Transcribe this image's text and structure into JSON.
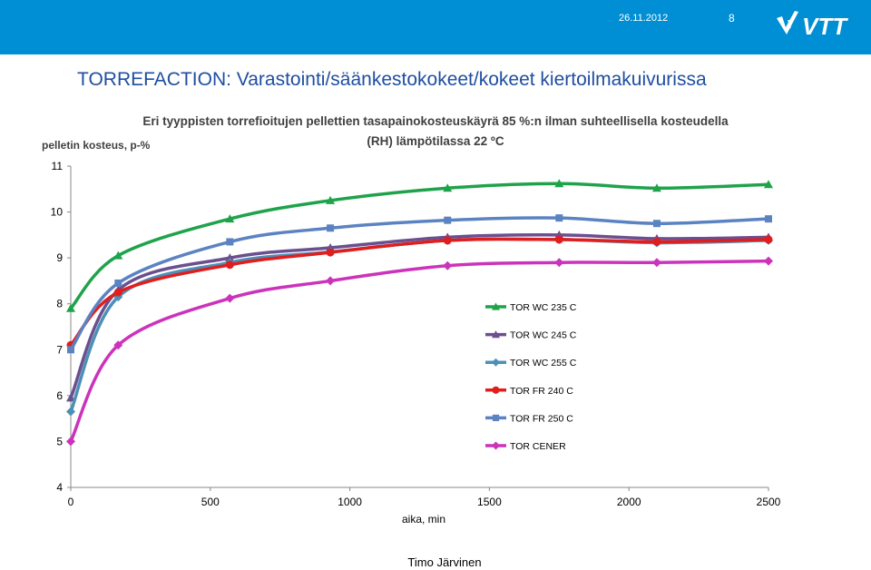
{
  "header": {
    "date": "26.11.2012",
    "page_number": "8",
    "logo": "vtt-logo"
  },
  "slide_title": "TORREFACTION: Varastointi/säänkestokokeet/kokeet kiertoilmakuivurissa",
  "footer_author": "Timo Järvinen",
  "chart_data": {
    "type": "line",
    "title": "Eri tyyppisten torrefioitujen pellettien tasapainokosteuskäyrä 85 %:n ilman suhteellisella kosteudella (RH) lämpötilassa 22 ºC",
    "xlabel": "aika, min",
    "ylabel": "pelletin kosteus, p-%",
    "xlim": [
      0,
      2500
    ],
    "ylim": [
      4,
      11
    ],
    "xticks": [
      0,
      500,
      1000,
      1500,
      2000,
      2500
    ],
    "yticks": [
      4,
      5,
      6,
      7,
      8,
      9,
      10,
      11
    ],
    "grid": false,
    "legend_position": "right",
    "x": [
      0,
      170,
      570,
      930,
      1350,
      1750,
      2100,
      2500
    ],
    "series": [
      {
        "name": "TOR WC 235 C",
        "color": "#1fa34a",
        "marker": "triangle",
        "values": [
          7.9,
          9.05,
          9.85,
          10.25,
          10.52,
          10.62,
          10.52,
          10.6
        ]
      },
      {
        "name": "TOR WC 245 C",
        "color": "#6b4f8e",
        "marker": "triangle",
        "values": [
          5.95,
          8.3,
          9.0,
          9.22,
          9.45,
          9.5,
          9.42,
          9.45
        ]
      },
      {
        "name": "TOR WC 255 C",
        "color": "#4a90b8",
        "marker": "diamond",
        "values": [
          5.65,
          8.15,
          8.9,
          9.13,
          9.38,
          9.4,
          9.33,
          9.38
        ]
      },
      {
        "name": "TOR FR 240 C",
        "color": "#e01e1e",
        "marker": "circle",
        "values": [
          7.1,
          8.25,
          8.85,
          9.12,
          9.38,
          9.4,
          9.35,
          9.4
        ]
      },
      {
        "name": "TOR FR 250 C",
        "color": "#5b83c2",
        "marker": "square",
        "values": [
          7.0,
          8.45,
          9.35,
          9.65,
          9.82,
          9.87,
          9.75,
          9.85
        ]
      },
      {
        "name": "TOR CENER",
        "color": "#cc33bb",
        "marker": "diamond",
        "values": [
          5.0,
          7.1,
          8.12,
          8.5,
          8.83,
          8.9,
          8.9,
          8.93
        ]
      }
    ]
  }
}
